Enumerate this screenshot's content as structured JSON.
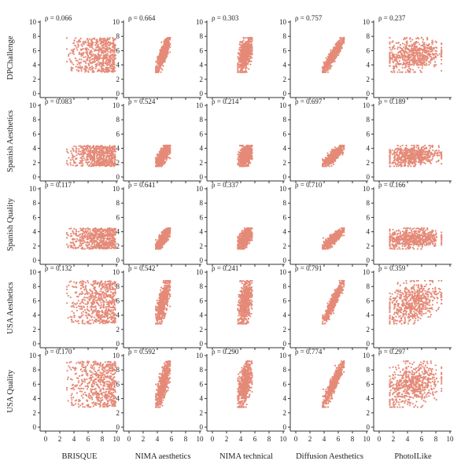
{
  "chart_data": {
    "type": "scatter",
    "title": "",
    "rows": [
      "DPChallenge",
      "Spanish Aesthetics",
      "Spanish Quality",
      "USA Aesthetics",
      "USA Quality"
    ],
    "columns": [
      "BRISQUE",
      "NIMA aesthetics",
      "NIMA technical",
      "Diffusion Aesthetics",
      "PhotoILike"
    ],
    "xlim": [
      0,
      10
    ],
    "ylim": [
      0,
      10
    ],
    "xticks": [
      0,
      2,
      4,
      6,
      8,
      10
    ],
    "yticks": [
      0,
      2,
      4,
      6,
      8,
      10
    ],
    "point_color": "#e58a78",
    "correlations": [
      [
        "ρ = 0.066",
        "ρ = 0.664",
        "ρ = 0.303",
        "ρ = 0.757",
        "ρ = 0.237"
      ],
      [
        "ρ = 0.083",
        "ρ = 0.524",
        "ρ = 0.214",
        "ρ = 0.697",
        "ρ = 0.189"
      ],
      [
        "ρ = 0.117",
        "ρ = 0.641",
        "ρ = 0.337",
        "ρ = 0.710",
        "ρ = 0.166"
      ],
      [
        "ρ = 0.132",
        "ρ = 0.542",
        "ρ = 0.241",
        "ρ = 0.791",
        "ρ = 0.359"
      ],
      [
        "ρ = 0.170",
        "ρ = 0.592",
        "ρ = 0.290",
        "ρ = 0.774",
        "ρ = 0.297"
      ]
    ],
    "row_y_ranges": [
      [
        3,
        7.8
      ],
      [
        1.5,
        4.4
      ],
      [
        1.6,
        4.5
      ],
      [
        2.8,
        8.8
      ],
      [
        2.8,
        9.2
      ]
    ],
    "column_x_ranges": [
      [
        3,
        9.9
      ],
      [
        3.8,
        5.8
      ],
      [
        3.6,
        5.6
      ],
      [
        3.8,
        6.8
      ],
      [
        1.5,
        8.8
      ]
    ],
    "outlier_x_values": [
      0.8,
      0.9
    ],
    "points_per_panel": 600
  }
}
